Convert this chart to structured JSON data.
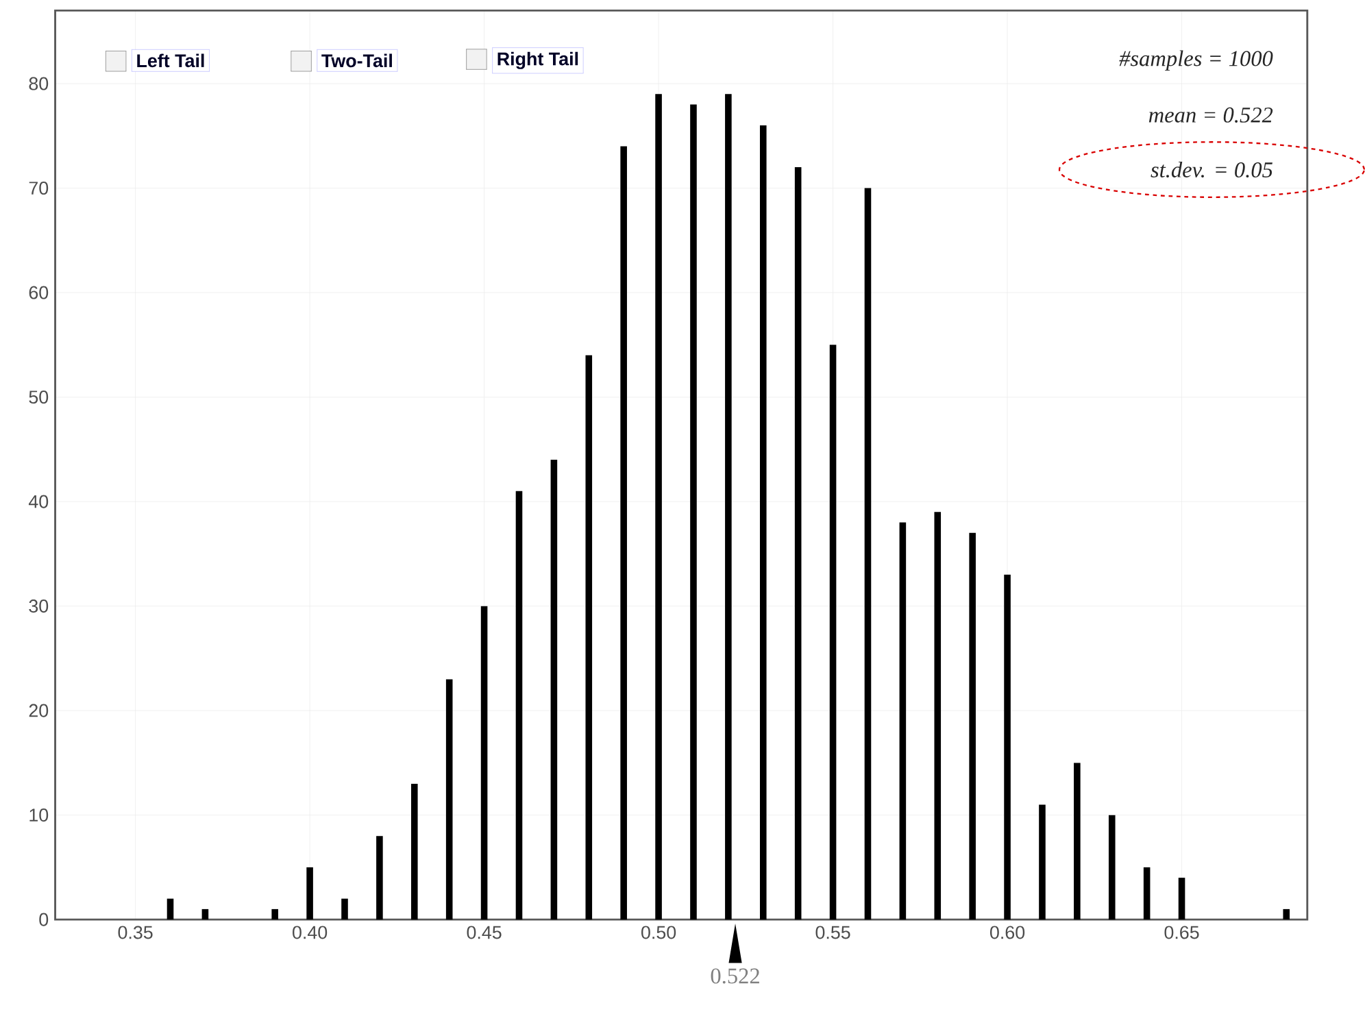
{
  "chart_data": {
    "type": "bar",
    "marker": "circle",
    "color": "#000000",
    "x": [
      0.36,
      0.37,
      0.39,
      0.4,
      0.41,
      0.42,
      0.43,
      0.44,
      0.45,
      0.46,
      0.47,
      0.48,
      0.49,
      0.5,
      0.51,
      0.52,
      0.53,
      0.54,
      0.55,
      0.56,
      0.57,
      0.58,
      0.59,
      0.6,
      0.61,
      0.62,
      0.63,
      0.64,
      0.65,
      0.68
    ],
    "values": [
      2,
      1,
      1,
      5,
      2,
      8,
      13,
      23,
      30,
      41,
      44,
      54,
      74,
      79,
      78,
      79,
      76,
      72,
      55,
      70,
      38,
      39,
      37,
      33,
      11,
      15,
      10,
      5,
      4,
      1
    ],
    "xlim": [
      0.327,
      0.686
    ],
    "ylim": [
      0,
      87
    ],
    "xticks": [
      0.35,
      {
        "value": 0.4,
        "label": "0.40"
      },
      0.45,
      {
        "value": 0.5,
        "label": "0.50"
      },
      0.55,
      {
        "value": 0.6,
        "label": "0.60"
      },
      0.65
    ],
    "yticks": [
      0,
      10,
      20,
      30,
      40,
      50,
      60,
      70,
      80
    ],
    "grid": true,
    "annotations": [
      "Left Tail",
      "Two-Tail",
      "Right Tail",
      "#samples = 1000",
      "mean = 0.522",
      "st.dev. = 0.05",
      {
        "text": "0.522",
        "x": 0.522,
        "y": 0
      }
    ]
  }
}
